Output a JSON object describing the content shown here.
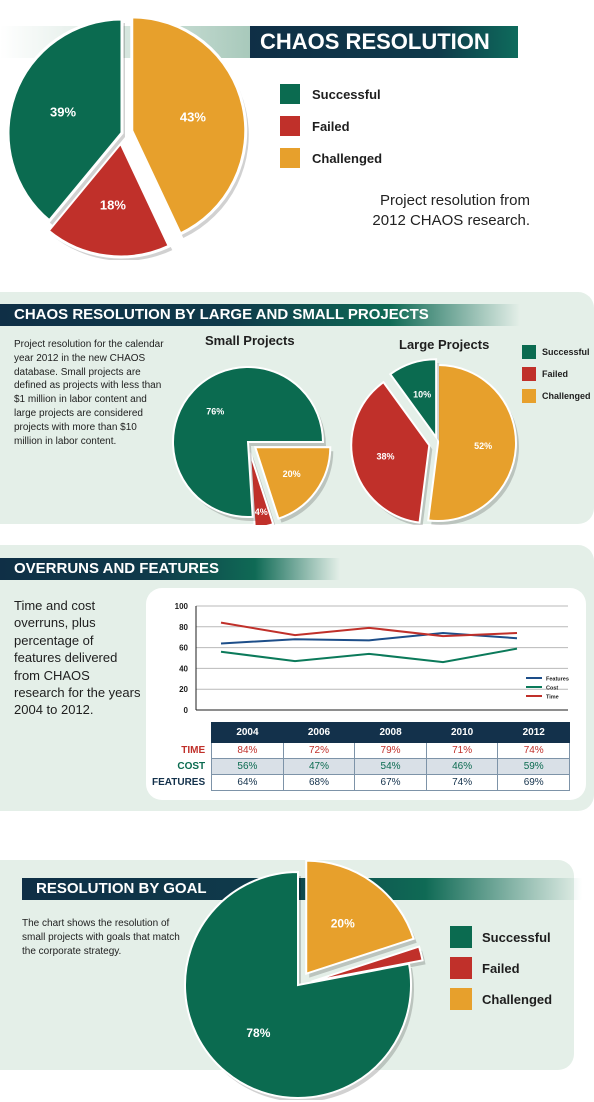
{
  "section1": {
    "title": "CHAOS RESOLUTION",
    "caption": "Project resolution from 2012 CHAOS research.",
    "legend": [
      {
        "label": "Successful",
        "color": "#0b6b50"
      },
      {
        "label": "Failed",
        "color": "#c0302a"
      },
      {
        "label": "Challenged",
        "color": "#e7a02c"
      }
    ]
  },
  "section2": {
    "title": "CHAOS RESOLUTION BY LARGE AND SMALL PROJECTS",
    "description": "Project resolution for the calendar year 2012 in the new CHAOS database. Small projects are defined as projects with less than $1 million in labor content and large projects are considered projects with more than $10 million in labor content.",
    "small_title": "Small Projects",
    "large_title": "Large Projects",
    "legend": [
      {
        "label": "Successful",
        "color": "#0b6b50"
      },
      {
        "label": "Failed",
        "color": "#c0302a"
      },
      {
        "label": "Challenged",
        "color": "#e7a02c"
      }
    ]
  },
  "section3": {
    "title": "OVERRUNS AND FEATURES",
    "description": "Time and cost overruns, plus percentage of features delivered from CHAOS research for the years 2004 to 2012.",
    "table": {
      "years": [
        "2004",
        "2006",
        "2008",
        "2010",
        "2012"
      ],
      "rows": [
        {
          "label": "TIME",
          "color": "#c0302a",
          "values": [
            "84%",
            "72%",
            "79%",
            "71%",
            "74%"
          ]
        },
        {
          "label": "COST",
          "color": "#0b6b50",
          "values": [
            "56%",
            "47%",
            "54%",
            "46%",
            "59%"
          ]
        },
        {
          "label": "FEATURES",
          "color": "#13314b",
          "values": [
            "64%",
            "68%",
            "67%",
            "74%",
            "69%"
          ]
        }
      ]
    }
  },
  "section4": {
    "title": "RESOLUTION BY GOAL",
    "description": "The chart shows the resolution of small projects with goals that match the corporate strategy.",
    "legend": [
      {
        "label": "Successful",
        "color": "#0b6b50"
      },
      {
        "label": "Failed",
        "color": "#c0302a"
      },
      {
        "label": "Challenged",
        "color": "#e7a02c"
      }
    ]
  },
  "chart_data": [
    {
      "type": "pie",
      "title": "CHAOS RESOLUTION",
      "slices": [
        {
          "label": "Successful",
          "value": 39,
          "display": "39%",
          "color": "#0b6b50"
        },
        {
          "label": "Failed",
          "value": 18,
          "display": "18%",
          "color": "#c0302a"
        },
        {
          "label": "Challenged",
          "value": 43,
          "display": "43%",
          "color": "#e7a02c"
        }
      ]
    },
    {
      "type": "pie",
      "title": "Small Projects",
      "slices": [
        {
          "label": "Successful",
          "value": 76,
          "display": "76%",
          "color": "#0b6b50"
        },
        {
          "label": "Failed",
          "value": 4,
          "display": "4%",
          "color": "#c0302a"
        },
        {
          "label": "Challenged",
          "value": 20,
          "display": "20%",
          "color": "#e7a02c"
        }
      ]
    },
    {
      "type": "pie",
      "title": "Large Projects",
      "slices": [
        {
          "label": "Successful",
          "value": 10,
          "display": "10%",
          "color": "#0b6b50"
        },
        {
          "label": "Failed",
          "value": 38,
          "display": "38%",
          "color": "#c0302a"
        },
        {
          "label": "Challenged",
          "value": 52,
          "display": "52%",
          "color": "#e7a02c"
        }
      ]
    },
    {
      "type": "line",
      "title": "OVERRUNS AND FEATURES",
      "x": [
        2004,
        2006,
        2008,
        2010,
        2012
      ],
      "ylim": [
        0,
        100
      ],
      "yticks": [
        0,
        20,
        40,
        60,
        80,
        100
      ],
      "grid": true,
      "legend_position": "right",
      "series": [
        {
          "name": "Features",
          "values": [
            64,
            68,
            67,
            74,
            69
          ],
          "color": "#1d4e89"
        },
        {
          "name": "Cost",
          "values": [
            56,
            47,
            54,
            46,
            59
          ],
          "color": "#0b7a5a"
        },
        {
          "name": "Time",
          "values": [
            84,
            72,
            79,
            71,
            74
          ],
          "color": "#c0302a"
        }
      ]
    },
    {
      "type": "pie",
      "title": "RESOLUTION BY GOAL",
      "slices": [
        {
          "label": "Successful",
          "value": 78,
          "display": "78%",
          "color": "#0b6b50"
        },
        {
          "label": "Failed",
          "value": 2,
          "display": "2%",
          "color": "#c0302a"
        },
        {
          "label": "Challenged",
          "value": 20,
          "display": "20%",
          "color": "#e7a02c"
        }
      ]
    }
  ]
}
